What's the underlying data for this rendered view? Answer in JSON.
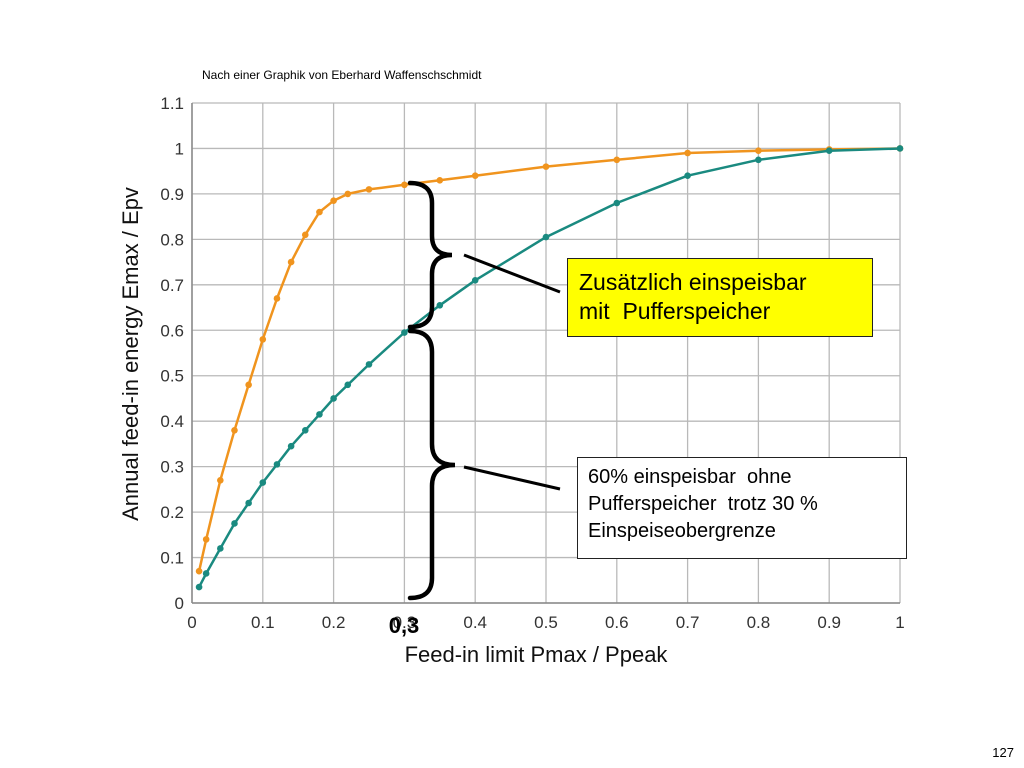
{
  "source_note": "Nach einer Graphik von Eberhard Waffenschschmidt",
  "page_number": "127",
  "colors": {
    "orange_series": "#f0941e",
    "teal_series": "#1a8a80",
    "grid": "#b9b9b9",
    "highlight_box": "#ffff00"
  },
  "chart_data": {
    "type": "line",
    "title": "",
    "xlabel": "Feed-in limit Pmax / Ppeak",
    "ylabel": "Annual feed-in energy Emax / Epv",
    "xlim": [
      0,
      1
    ],
    "ylim": [
      0,
      1.1
    ],
    "x_ticks": [
      "0",
      "0.1",
      "0.2",
      "0.3",
      "0.4",
      "0.5",
      "0.6",
      "0.7",
      "0.8",
      "0.9",
      "1"
    ],
    "y_ticks": [
      "0",
      "0.1",
      "0.2",
      "0.3",
      "0.4",
      "0.5",
      "0.6",
      "0.7",
      "0.8",
      "0.9",
      "1",
      "1.1"
    ],
    "grid": true,
    "legend": "none",
    "series": [
      {
        "color": "#f0941e",
        "x": [
          0.01,
          0.02,
          0.04,
          0.06,
          0.08,
          0.1,
          0.12,
          0.14,
          0.16,
          0.18,
          0.2,
          0.22,
          0.25,
          0.3,
          0.35,
          0.4,
          0.5,
          0.6,
          0.7,
          0.8,
          0.9,
          1.0
        ],
        "y": [
          0.07,
          0.14,
          0.27,
          0.38,
          0.48,
          0.58,
          0.67,
          0.75,
          0.81,
          0.86,
          0.885,
          0.9,
          0.91,
          0.92,
          0.93,
          0.94,
          0.96,
          0.975,
          0.99,
          0.995,
          0.998,
          1.0
        ]
      },
      {
        "color": "#1a8a80",
        "x": [
          0.01,
          0.02,
          0.04,
          0.06,
          0.08,
          0.1,
          0.12,
          0.14,
          0.16,
          0.18,
          0.2,
          0.22,
          0.25,
          0.3,
          0.35,
          0.4,
          0.5,
          0.6,
          0.7,
          0.8,
          0.9,
          1.0
        ],
        "y": [
          0.035,
          0.065,
          0.12,
          0.175,
          0.22,
          0.265,
          0.305,
          0.345,
          0.38,
          0.415,
          0.45,
          0.48,
          0.525,
          0.595,
          0.655,
          0.71,
          0.805,
          0.88,
          0.94,
          0.975,
          0.995,
          1.0
        ]
      }
    ],
    "annotations": [
      {
        "text": "0,3",
        "x": 0.3
      }
    ]
  },
  "boxes": {
    "with_storage": [
      "Zusätzlich einspeisbar",
      "mit  Pufferspeicher"
    ],
    "without_storage": [
      "60% einspeisbar  ohne",
      "Pufferspeicher  trotz 30 %",
      "Einspeiseobergrenze"
    ]
  }
}
